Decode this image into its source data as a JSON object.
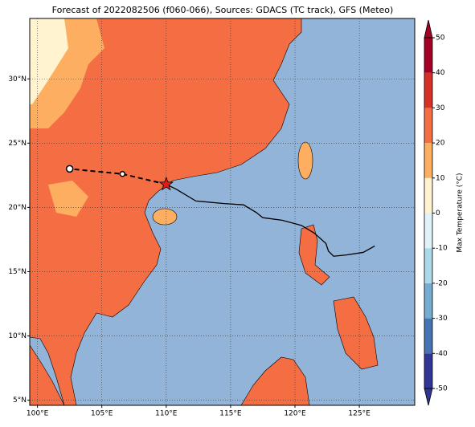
{
  "title": "Forecast of 2022082506 (f060-066), Sources: GDACS (TC track), GFS (Meteo)",
  "map": {
    "lonlim": [
      99.4,
      129.3
    ],
    "latlim": [
      4.6,
      34.7
    ],
    "lonticks": [
      {
        "value": 100,
        "label": "100°E"
      },
      {
        "value": 105,
        "label": "105°E"
      },
      {
        "value": 110,
        "label": "110°E"
      },
      {
        "value": 115,
        "label": "115°E"
      },
      {
        "value": 120,
        "label": "120°E"
      },
      {
        "value": 125,
        "label": "125°E"
      }
    ],
    "latticks": [
      {
        "value": 5,
        "label": "5°N"
      },
      {
        "value": 10,
        "label": "10°N"
      },
      {
        "value": 15,
        "label": "15°N"
      },
      {
        "value": 20,
        "label": "20°N"
      },
      {
        "value": 25,
        "label": "25°N"
      },
      {
        "value": 30,
        "label": "30°N"
      }
    ],
    "grid": true,
    "track": {
      "color": "#000000",
      "lon": [
        126.2,
        125.3,
        124.0,
        123.0,
        122.6,
        122.4,
        121.5,
        120.5,
        119.0,
        117.5,
        117.0,
        116.0,
        114.5,
        112.3,
        110.8,
        110.0
      ],
      "lat": [
        17.0,
        16.5,
        16.3,
        16.2,
        16.6,
        17.2,
        18.0,
        18.6,
        19.0,
        19.2,
        19.6,
        20.2,
        20.3,
        20.5,
        21.4,
        21.8
      ]
    },
    "forecast": {
      "color": "#000000",
      "lon": [
        110.0,
        106.6,
        102.5
      ],
      "lat": [
        21.8,
        22.6,
        23.0
      ]
    }
  },
  "colorbar": {
    "label": "Max Temperature (°C)",
    "lim": [
      -50,
      50
    ],
    "ticks": [
      -50,
      -40,
      -30,
      -20,
      -10,
      0,
      10,
      20,
      30,
      40,
      50
    ],
    "colors": [
      "#313695",
      "#4575b4",
      "#74add1",
      "#abd9e9",
      "#e0f3f8",
      "#fff3d0",
      "#fdae61",
      "#f46d43",
      "#d73027",
      "#a50026"
    ]
  }
}
